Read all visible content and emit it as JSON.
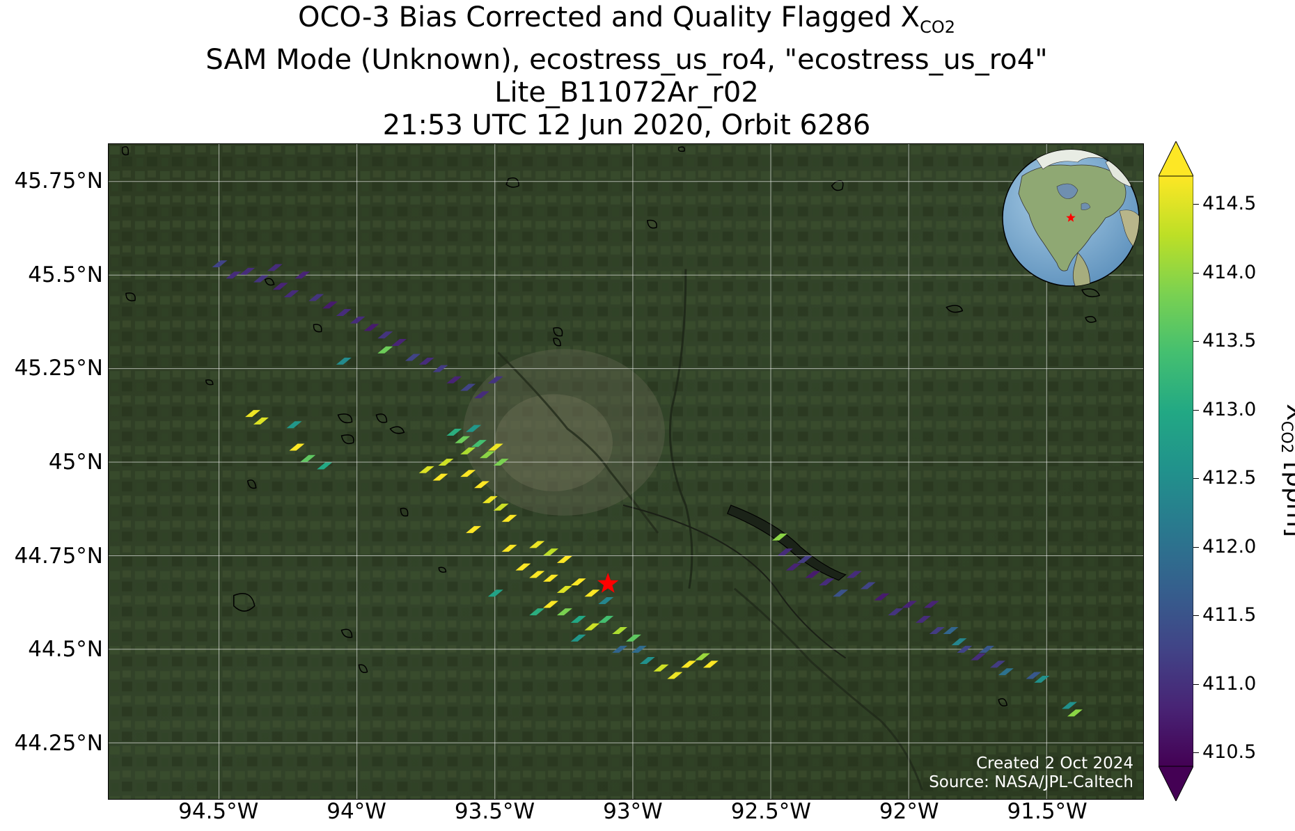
{
  "title": {
    "line1_prefix": "OCO-3 Bias Corrected and Quality Flagged X",
    "line1_sub": "CO2",
    "line2": "SAM Mode (Unknown), ecostress_us_ro4, \"ecostress_us_ro4\"",
    "line3": "Lite_B11072Ar_r02",
    "line4": "21:53 UTC 12 Jun 2020, Orbit 6286"
  },
  "map": {
    "lon_range": [
      -94.9,
      -91.15
    ],
    "lat_range": [
      44.1,
      45.85
    ],
    "lat_ticks": [
      {
        "value": 45.75,
        "label": "45.75°N"
      },
      {
        "value": 45.5,
        "label": "45.5°N"
      },
      {
        "value": 45.25,
        "label": "45.25°N"
      },
      {
        "value": 45.0,
        "label": "45°N"
      },
      {
        "value": 44.75,
        "label": "44.75°N"
      },
      {
        "value": 44.5,
        "label": "44.5°N"
      },
      {
        "value": 44.25,
        "label": "44.25°N"
      }
    ],
    "lon_ticks": [
      {
        "value": -94.5,
        "label": "94.5°W"
      },
      {
        "value": -94.0,
        "label": "94°W"
      },
      {
        "value": -93.5,
        "label": "93.5°W"
      },
      {
        "value": -93.0,
        "label": "93°W"
      },
      {
        "value": -92.5,
        "label": "92.5°W"
      },
      {
        "value": -92.0,
        "label": "92°W"
      },
      {
        "value": -91.5,
        "label": "91.5°W"
      }
    ],
    "target_marker": {
      "lon": -93.09,
      "lat": 44.675,
      "color": "#ff0000",
      "symbol": "star"
    },
    "basemap": "satellite imagery",
    "credit": {
      "line1": "Created 2 Oct 2024",
      "line2": "Source: NASA/JPL-Caltech"
    }
  },
  "globe": {
    "center": "North America",
    "marker_color": "#ff0000"
  },
  "colorbar": {
    "colormap": "viridis",
    "range": [
      410.5,
      414.5
    ],
    "extend": "both",
    "ticks": [
      "414.5",
      "414.0",
      "413.5",
      "413.0",
      "412.5",
      "412.0",
      "411.5",
      "411.0",
      "410.5"
    ],
    "label_prefix": "X",
    "label_sub": "CO2",
    "label_suffix": " [ppm]"
  },
  "chart_data": {
    "type": "scatter",
    "xlabel": "",
    "ylabel": "",
    "xlim": [
      -94.9,
      -91.15
    ],
    "ylim": [
      44.1,
      45.85
    ],
    "color_variable": "XCO2 [ppm]",
    "soundings": [
      {
        "lon": -94.5,
        "lat": 45.53,
        "xco2": 411.3
      },
      {
        "lon": -94.45,
        "lat": 45.5,
        "xco2": 411.0
      },
      {
        "lon": -94.4,
        "lat": 45.51,
        "xco2": 411.0
      },
      {
        "lon": -94.35,
        "lat": 45.49,
        "xco2": 411.1
      },
      {
        "lon": -94.3,
        "lat": 45.52,
        "xco2": 411.0
      },
      {
        "lon": -94.28,
        "lat": 45.47,
        "xco2": 410.9
      },
      {
        "lon": -94.24,
        "lat": 45.45,
        "xco2": 411.0
      },
      {
        "lon": -94.2,
        "lat": 45.5,
        "xco2": 410.9
      },
      {
        "lon": -94.15,
        "lat": 45.44,
        "xco2": 411.1
      },
      {
        "lon": -94.1,
        "lat": 45.42,
        "xco2": 410.8
      },
      {
        "lon": -94.05,
        "lat": 45.4,
        "xco2": 411.0
      },
      {
        "lon": -94.0,
        "lat": 45.38,
        "xco2": 411.0
      },
      {
        "lon": -93.95,
        "lat": 45.36,
        "xco2": 410.8
      },
      {
        "lon": -93.9,
        "lat": 45.34,
        "xco2": 411.1
      },
      {
        "lon": -93.85,
        "lat": 45.32,
        "xco2": 410.9
      },
      {
        "lon": -93.8,
        "lat": 45.28,
        "xco2": 411.3
      },
      {
        "lon": -93.75,
        "lat": 45.27,
        "xco2": 411.0
      },
      {
        "lon": -93.7,
        "lat": 45.25,
        "xco2": 411.2
      },
      {
        "lon": -93.65,
        "lat": 45.22,
        "xco2": 410.9
      },
      {
        "lon": -93.6,
        "lat": 45.2,
        "xco2": 411.3
      },
      {
        "lon": -93.55,
        "lat": 45.18,
        "xco2": 411.0
      },
      {
        "lon": -93.5,
        "lat": 45.22,
        "xco2": 411.1
      },
      {
        "lon": -93.9,
        "lat": 45.3,
        "xco2": 413.6
      },
      {
        "lon": -94.05,
        "lat": 45.27,
        "xco2": 412.4
      },
      {
        "lon": -94.38,
        "lat": 45.13,
        "xco2": 414.4
      },
      {
        "lon": -94.35,
        "lat": 45.11,
        "xco2": 414.3
      },
      {
        "lon": -94.23,
        "lat": 45.1,
        "xco2": 412.6
      },
      {
        "lon": -94.22,
        "lat": 45.04,
        "xco2": 414.5
      },
      {
        "lon": -94.18,
        "lat": 45.01,
        "xco2": 413.5
      },
      {
        "lon": -94.12,
        "lat": 44.99,
        "xco2": 412.9
      },
      {
        "lon": -93.75,
        "lat": 44.98,
        "xco2": 414.3
      },
      {
        "lon": -93.7,
        "lat": 44.96,
        "xco2": 414.6
      },
      {
        "lon": -93.68,
        "lat": 45.0,
        "xco2": 414.2
      },
      {
        "lon": -93.65,
        "lat": 45.08,
        "xco2": 413.0
      },
      {
        "lon": -93.62,
        "lat": 45.06,
        "xco2": 413.6
      },
      {
        "lon": -93.6,
        "lat": 45.03,
        "xco2": 414.0
      },
      {
        "lon": -93.58,
        "lat": 45.09,
        "xco2": 412.6
      },
      {
        "lon": -93.56,
        "lat": 45.05,
        "xco2": 413.3
      },
      {
        "lon": -93.53,
        "lat": 45.02,
        "xco2": 413.8
      },
      {
        "lon": -93.5,
        "lat": 45.04,
        "xco2": 414.4
      },
      {
        "lon": -93.48,
        "lat": 45.0,
        "xco2": 413.7
      },
      {
        "lon": -93.6,
        "lat": 44.97,
        "xco2": 414.6
      },
      {
        "lon": -93.55,
        "lat": 44.94,
        "xco2": 414.5
      },
      {
        "lon": -93.52,
        "lat": 44.9,
        "xco2": 414.4
      },
      {
        "lon": -93.48,
        "lat": 44.88,
        "xco2": 414.2
      },
      {
        "lon": -93.45,
        "lat": 44.85,
        "xco2": 414.6
      },
      {
        "lon": -93.58,
        "lat": 44.82,
        "xco2": 414.7
      },
      {
        "lon": -93.45,
        "lat": 44.77,
        "xco2": 414.6
      },
      {
        "lon": -93.35,
        "lat": 44.78,
        "xco2": 414.4
      },
      {
        "lon": -93.3,
        "lat": 44.76,
        "xco2": 414.1
      },
      {
        "lon": -93.25,
        "lat": 44.74,
        "xco2": 414.7
      },
      {
        "lon": -93.4,
        "lat": 44.72,
        "xco2": 414.6
      },
      {
        "lon": -93.35,
        "lat": 44.7,
        "xco2": 414.8
      },
      {
        "lon": -93.3,
        "lat": 44.69,
        "xco2": 414.5
      },
      {
        "lon": -93.25,
        "lat": 44.66,
        "xco2": 414.3
      },
      {
        "lon": -93.2,
        "lat": 44.68,
        "xco2": 414.8
      },
      {
        "lon": -93.15,
        "lat": 44.65,
        "xco2": 414.6
      },
      {
        "lon": -93.1,
        "lat": 44.63,
        "xco2": 412.3
      },
      {
        "lon": -93.35,
        "lat": 44.6,
        "xco2": 413.0
      },
      {
        "lon": -93.3,
        "lat": 44.62,
        "xco2": 414.5
      },
      {
        "lon": -93.25,
        "lat": 44.6,
        "xco2": 413.7
      },
      {
        "lon": -93.2,
        "lat": 44.58,
        "xco2": 412.9
      },
      {
        "lon": -93.15,
        "lat": 44.56,
        "xco2": 414.2
      },
      {
        "lon": -93.1,
        "lat": 44.58,
        "xco2": 413.3
      },
      {
        "lon": -93.05,
        "lat": 44.55,
        "xco2": 414.0
      },
      {
        "lon": -93.2,
        "lat": 44.53,
        "xco2": 412.6
      },
      {
        "lon": -93.0,
        "lat": 44.53,
        "xco2": 413.5
      },
      {
        "lon": -93.5,
        "lat": 44.65,
        "xco2": 412.8
      },
      {
        "lon": -93.05,
        "lat": 44.5,
        "xco2": 411.8
      },
      {
        "lon": -92.98,
        "lat": 44.5,
        "xco2": 411.9
      },
      {
        "lon": -92.95,
        "lat": 44.47,
        "xco2": 412.5
      },
      {
        "lon": -92.9,
        "lat": 44.45,
        "xco2": 414.2
      },
      {
        "lon": -92.85,
        "lat": 44.43,
        "xco2": 414.4
      },
      {
        "lon": -92.8,
        "lat": 44.46,
        "xco2": 414.6
      },
      {
        "lon": -92.75,
        "lat": 44.48,
        "xco2": 413.9
      },
      {
        "lon": -92.72,
        "lat": 44.46,
        "xco2": 414.5
      },
      {
        "lon": -92.47,
        "lat": 44.8,
        "xco2": 413.8
      },
      {
        "lon": -92.45,
        "lat": 44.76,
        "xco2": 411.0
      },
      {
        "lon": -92.42,
        "lat": 44.72,
        "xco2": 410.9
      },
      {
        "lon": -92.38,
        "lat": 44.74,
        "xco2": 411.2
      },
      {
        "lon": -92.35,
        "lat": 44.7,
        "xco2": 410.8
      },
      {
        "lon": -92.3,
        "lat": 44.68,
        "xco2": 411.0
      },
      {
        "lon": -92.25,
        "lat": 44.65,
        "xco2": 411.5
      },
      {
        "lon": -92.2,
        "lat": 44.7,
        "xco2": 411.0
      },
      {
        "lon": -92.15,
        "lat": 44.67,
        "xco2": 411.3
      },
      {
        "lon": -92.1,
        "lat": 44.64,
        "xco2": 410.8
      },
      {
        "lon": -92.05,
        "lat": 44.6,
        "xco2": 411.1
      },
      {
        "lon": -92.0,
        "lat": 44.62,
        "xco2": 410.9
      },
      {
        "lon": -91.95,
        "lat": 44.58,
        "xco2": 411.0
      },
      {
        "lon": -91.92,
        "lat": 44.62,
        "xco2": 410.9
      },
      {
        "lon": -91.9,
        "lat": 44.55,
        "xco2": 411.2
      },
      {
        "lon": -91.85,
        "lat": 44.55,
        "xco2": 411.8
      },
      {
        "lon": -91.82,
        "lat": 44.52,
        "xco2": 412.3
      },
      {
        "lon": -91.8,
        "lat": 44.5,
        "xco2": 411.3
      },
      {
        "lon": -91.75,
        "lat": 44.48,
        "xco2": 411.0
      },
      {
        "lon": -91.72,
        "lat": 44.5,
        "xco2": 411.6
      },
      {
        "lon": -91.68,
        "lat": 44.46,
        "xco2": 411.2
      },
      {
        "lon": -91.65,
        "lat": 44.44,
        "xco2": 412.0
      },
      {
        "lon": -91.55,
        "lat": 44.43,
        "xco2": 411.6
      },
      {
        "lon": -91.52,
        "lat": 44.42,
        "xco2": 412.5
      },
      {
        "lon": -91.42,
        "lat": 44.35,
        "xco2": 412.5
      },
      {
        "lon": -91.4,
        "lat": 44.33,
        "xco2": 413.8
      }
    ]
  }
}
